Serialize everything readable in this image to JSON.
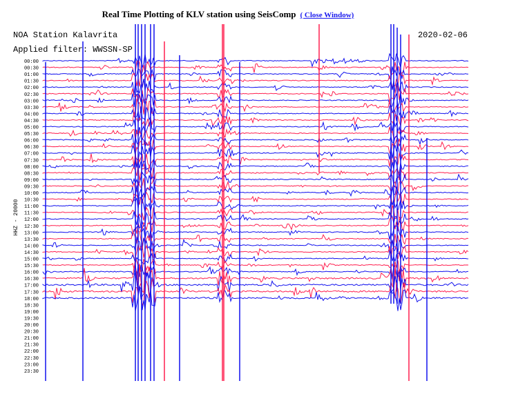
{
  "header": {
    "title": "Real Time Plotting of KLV station using SeisComp",
    "link": "( Close Window)"
  },
  "plot": {
    "station": "NOA Station Kalavrita",
    "filter": "Applied filter: WWSSN-SP",
    "date": "2020-02-06",
    "channel": "HHZ - 20000",
    "time_labels": [
      "00:00",
      "00:30",
      "01:00",
      "01:30",
      "02:00",
      "02:30",
      "03:00",
      "03:30",
      "04:00",
      "04:30",
      "05:00",
      "05:30",
      "06:00",
      "06:30",
      "07:00",
      "07:30",
      "08:00",
      "08:30",
      "09:00",
      "09:30",
      "10:00",
      "10:30",
      "11:00",
      "11:30",
      "12:00",
      "12:30",
      "13:00",
      "13:30",
      "14:00",
      "14:30",
      "15:00",
      "15:30",
      "16:00",
      "16:30",
      "17:00",
      "17:30",
      "18:00",
      "18:30",
      "19:00",
      "19:30",
      "20:00",
      "20:30",
      "21:00",
      "21:30",
      "22:00",
      "22:30",
      "23:00",
      "23:30"
    ]
  }
}
